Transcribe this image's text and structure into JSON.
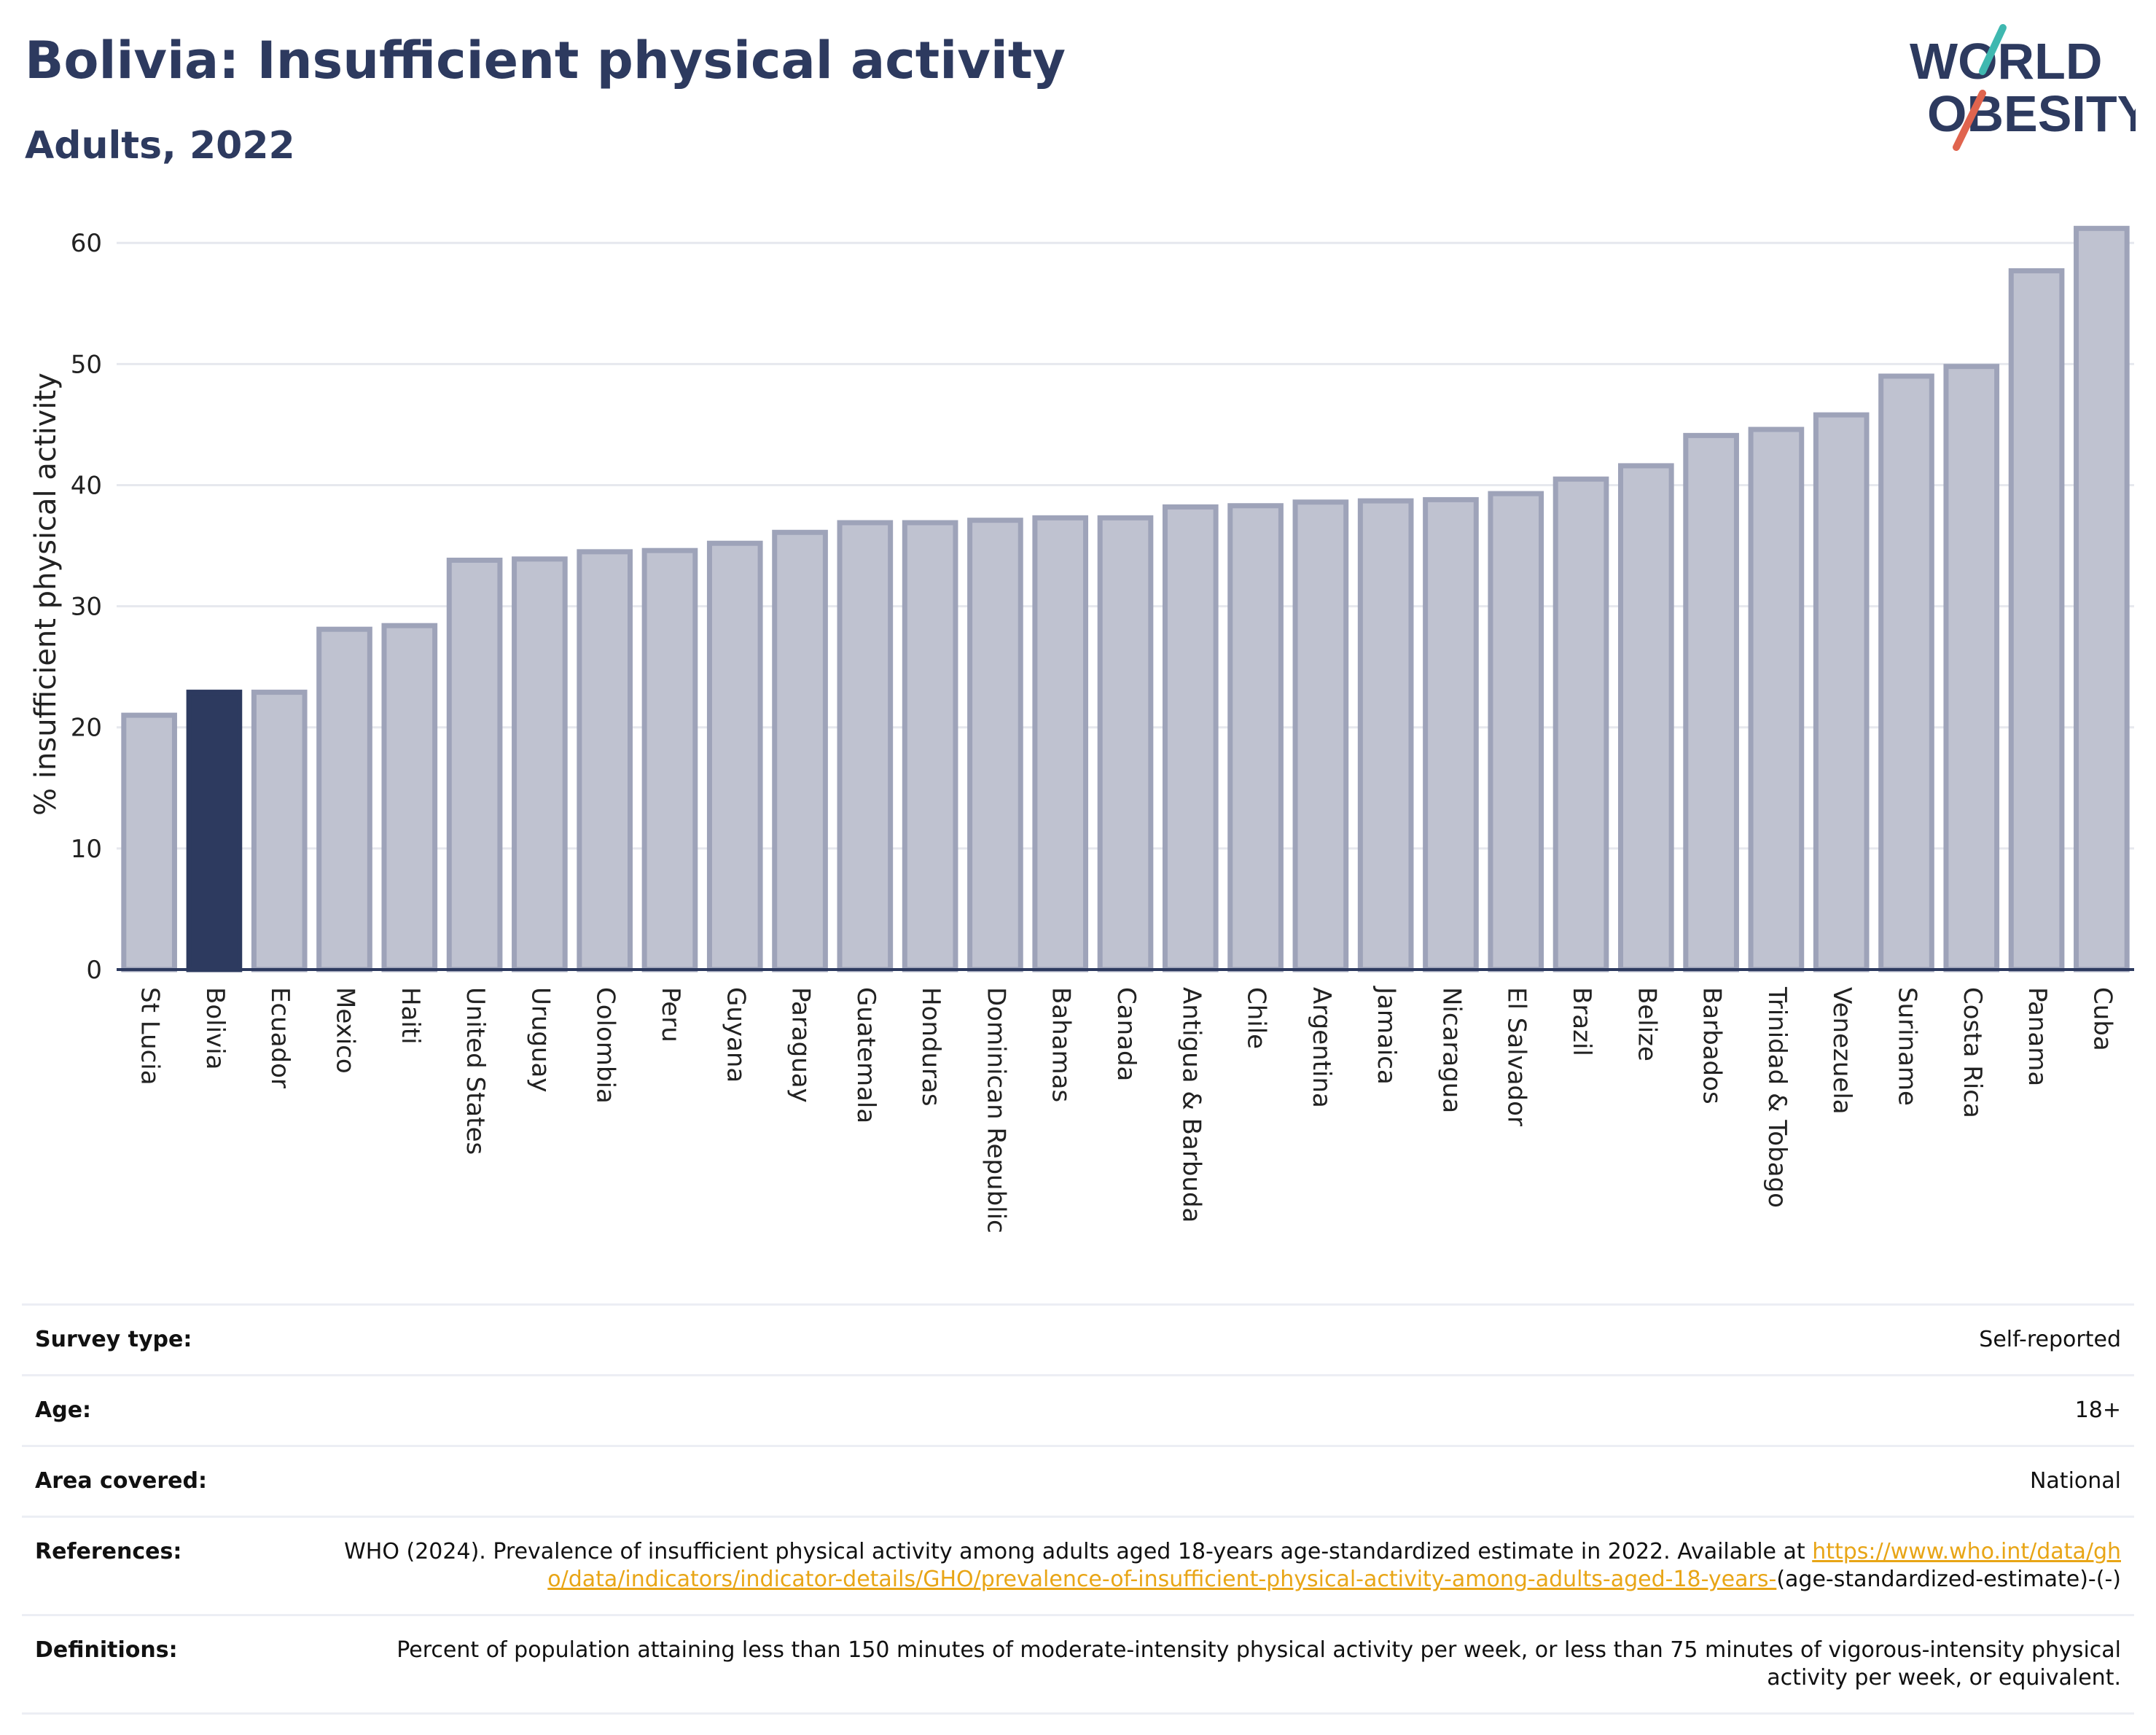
{
  "header": {
    "title": "Bolivia: Insufficient physical activity",
    "subtitle": "Adults, 2022"
  },
  "logo": {
    "line1": "WORLD",
    "line2": "OBESITY"
  },
  "colors": {
    "bar": "#bfc2d0",
    "bar_edge": "#9ea3b9",
    "highlight": "#2d3a5f",
    "title": "#2d3a5f",
    "logo_red": "#e0644e",
    "logo_teal": "#3fb8b0"
  },
  "chart_data": {
    "type": "bar",
    "title": "Bolivia: Insufficient physical activity",
    "subtitle": "Adults, 2022",
    "xlabel": "",
    "ylabel": "% insufficient physical activity",
    "ylim": [
      0,
      62
    ],
    "yticks": [
      0,
      10,
      20,
      30,
      40,
      50,
      60
    ],
    "grid": true,
    "highlight": "Bolivia",
    "categories": [
      "St Lucia",
      "Bolivia",
      "Ecuador",
      "Mexico",
      "Haiti",
      "United States",
      "Uruguay",
      "Colombia",
      "Peru",
      "Guyana",
      "Paraguay",
      "Guatemala",
      "Honduras",
      "Dominican Republic",
      "Bahamas",
      "Canada",
      "Antigua & Barbuda",
      "Chile",
      "Argentina",
      "Jamaica",
      "Nicaragua",
      "El Salvador",
      "Brazil",
      "Belize",
      "Barbados",
      "Trinidad & Tobago",
      "Venezuela",
      "Suriname",
      "Costa Rica",
      "Panama",
      "Cuba"
    ],
    "values": [
      21.0,
      22.9,
      22.9,
      28.1,
      28.4,
      33.8,
      33.9,
      34.5,
      34.6,
      35.2,
      36.1,
      36.9,
      36.9,
      37.1,
      37.3,
      37.3,
      38.2,
      38.3,
      38.6,
      38.7,
      38.8,
      39.3,
      40.5,
      41.6,
      44.1,
      44.6,
      45.8,
      49.0,
      49.8,
      57.7,
      61.2
    ]
  },
  "info": {
    "survey_type": {
      "label": "Survey type:",
      "value": "Self-reported"
    },
    "age": {
      "label": "Age:",
      "value": "18+"
    },
    "area": {
      "label": "Area covered:",
      "value": "National"
    },
    "references": {
      "label": "References:",
      "text": "WHO (2024). Prevalence of insufficient physical activity among adults aged 18-years age-standardized estimate in 2022. Available at ",
      "link": "https://www.who.int/data/gho/data/indicators/indicator-details/GHO/prevalence-of-insufficient-physical-activity-among-adults-aged-18-years-",
      "tail": "(age-standardized-estimate)-(-)"
    },
    "definitions": {
      "label": "Definitions:",
      "value": "Percent of population attaining less than 150 minutes of moderate-intensity physical activity per week, or less than 75 minutes of vigorous-intensity physical activity per week, or equivalent."
    }
  }
}
